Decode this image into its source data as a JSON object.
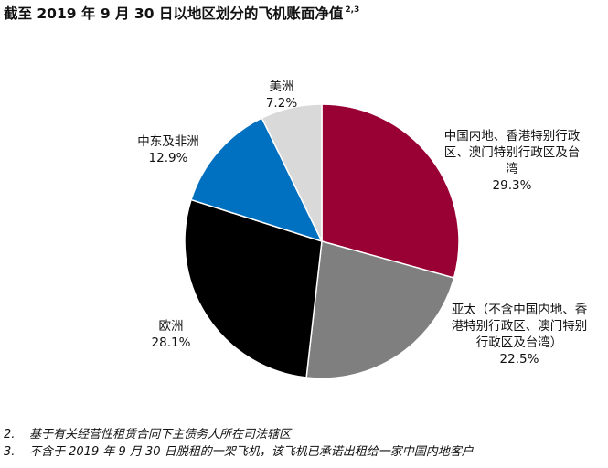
{
  "title": "截至 2019 年 9 月 30 日以地区划分的飞机账面净值",
  "title_superscript": "2,3",
  "chart_data": {
    "type": "pie",
    "title": "截至 2019 年 9 月 30 日以地区划分的飞机账面净值",
    "start_angle_deg": 0,
    "direction": "clockwise",
    "slices": [
      {
        "label_lines": [
          "中国内地、香港特别行政",
          "区、澳门特别行政区及台",
          "湾"
        ],
        "pct_label": "29.3%",
        "value": 29.3,
        "color": "#990033"
      },
      {
        "label_lines": [
          "亚太（不含中国内地、香",
          "港特别行政区、澳门特别",
          "行政区及台湾）"
        ],
        "pct_label": "22.5%",
        "value": 22.5,
        "color": "#7f7f7f"
      },
      {
        "label_lines": [
          "欧洲"
        ],
        "pct_label": "28.1%",
        "value": 28.1,
        "color": "#000000"
      },
      {
        "label_lines": [
          "中东及非洲"
        ],
        "pct_label": "12.9%",
        "value": 12.9,
        "color": "#0070c0"
      },
      {
        "label_lines": [
          "美洲"
        ],
        "pct_label": "7.2%",
        "value": 7.2,
        "color": "#d9d9d9"
      }
    ]
  },
  "notes": [
    {
      "num": "2.",
      "text": "基于有关经营性租赁合同下主债务人所在司法辖区"
    },
    {
      "num": "3.",
      "text": "不含于 2019 年 9 月 30 日脱租的一架飞机，该飞机已承诺出租给一家中国内地客户"
    }
  ]
}
